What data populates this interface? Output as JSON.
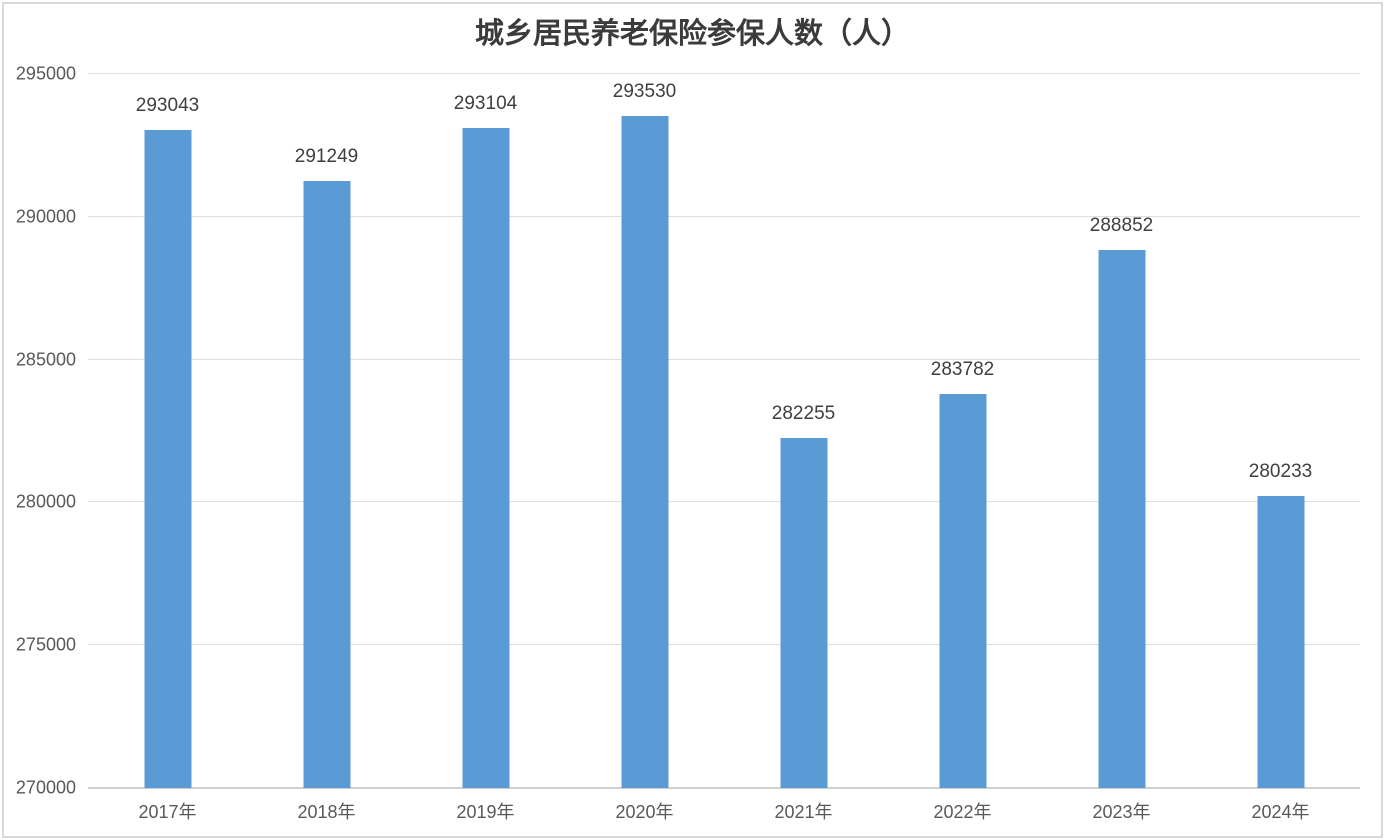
{
  "title": "城乡居民养老保险参保人数（人）",
  "colors": {
    "bar": "#5B9BD5",
    "gridline": "#DFDFDF",
    "axis_line": "#CFCFCF",
    "axis_text": "#595959",
    "data_label_text": "#3F3F3F",
    "title_text": "#3B3B3B",
    "frame_border": "#D9D9D9",
    "background": "#FFFFFF"
  },
  "chart_data": {
    "type": "bar",
    "title": "城乡居民养老保险参保人数（人）",
    "categories": [
      "2017年",
      "2018年",
      "2019年",
      "2020年",
      "2021年",
      "2022年",
      "2023年",
      "2024年"
    ],
    "values": [
      293043,
      291249,
      293104,
      293530,
      282255,
      283782,
      288852,
      280233
    ],
    "xlabel": "",
    "ylabel": "",
    "ylim": [
      270000,
      295000
    ],
    "y_ticks": [
      270000,
      275000,
      280000,
      285000,
      290000,
      295000
    ],
    "grid": true,
    "legend": false,
    "data_labels": true
  }
}
